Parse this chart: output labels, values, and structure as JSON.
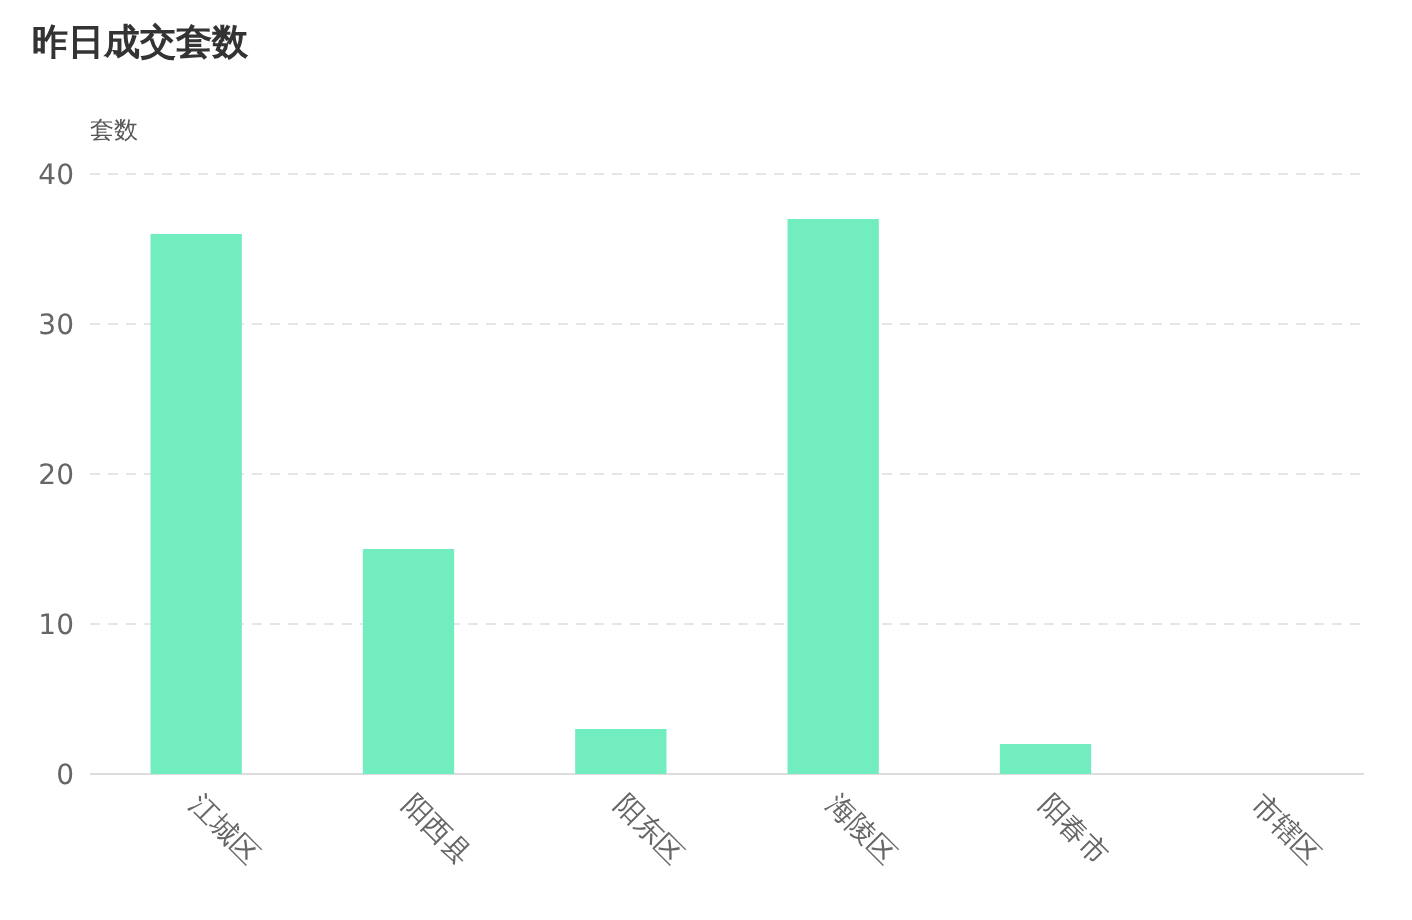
{
  "chart_data": {
    "type": "bar",
    "title": "昨日成交套数",
    "ylabel": "套数",
    "categories": [
      "江城区",
      "阳西县",
      "阳东区",
      "海陵区",
      "阳春市",
      "市辖区"
    ],
    "values": [
      36,
      15,
      3,
      37,
      2,
      0
    ],
    "color": "#72edbf",
    "ylim": [
      0,
      40
    ],
    "yticks": [
      0,
      10,
      20,
      30,
      40
    ],
    "grid": "y"
  }
}
